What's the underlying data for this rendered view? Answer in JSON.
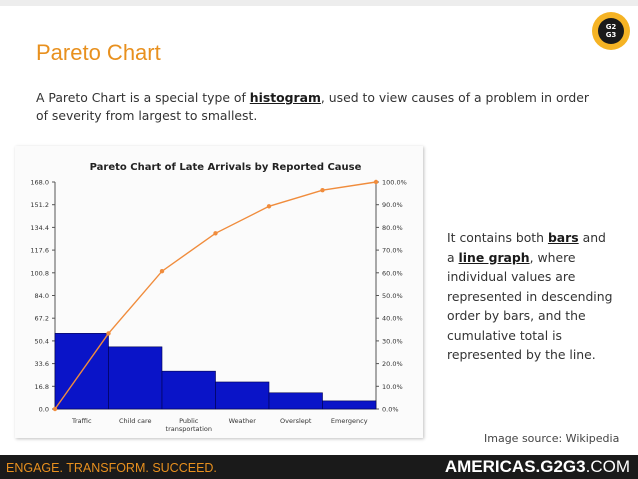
{
  "slide": {
    "title": "Pareto Chart",
    "intro_before": "A Pareto Chart is a special type of ",
    "intro_link": "histogram",
    "intro_after": ", used to view causes of a problem in order of severity from largest to smallest.",
    "side_1": "It contains both ",
    "side_link_1": "bars",
    "side_2": " and a ",
    "side_link_2": "line graph",
    "side_3": ", where individual values are represented in descending order by bars, and the cumulative total is represented by the line.",
    "image_source": "Image source:  Wikipedia",
    "logo_line_1": "G2",
    "logo_line_2": "G3"
  },
  "footer": {
    "tagline": "ENGAGE. TRANSFORM. SUCCEED.",
    "site_main": "AMERICAS.G2G3",
    "site_suffix": ".COM"
  },
  "colors": {
    "accent_orange": "#e8901e",
    "bar_blue": "#0a14c8",
    "line_orange": "#f08c3c",
    "footer_bg": "#1a1a1a"
  },
  "chart_data": {
    "type": "bar",
    "title": "Pareto Chart of Late Arrivals by Reported Cause",
    "categories": [
      "Traffic",
      "Child care",
      "Public\ntransportation",
      "Weather",
      "Overslept",
      "Emergency"
    ],
    "series": [
      {
        "type": "bar",
        "values": [
          56,
          46,
          28,
          20,
          12,
          6
        ]
      },
      {
        "type": "line",
        "axis": "right",
        "values_percent": [
          33.3,
          60.7,
          77.4,
          89.3,
          96.4,
          100.0
        ]
      }
    ],
    "line_start_percent": 0,
    "yticks_left": [
      "0.0",
      "16.8",
      "33.6",
      "50.4",
      "67.2",
      "84.0",
      "100.8",
      "117.6",
      "134.4",
      "151.2",
      "168.0"
    ],
    "yticks_right": [
      "0.0%",
      "10.0%",
      "20.0%",
      "30.0%",
      "40.0%",
      "50.0%",
      "60.0%",
      "70.0%",
      "80.0%",
      "90.0%",
      "100.0%"
    ],
    "ylim": [
      0,
      168
    ],
    "ylim_right": [
      0,
      100
    ],
    "grid": false,
    "legend": "none"
  }
}
